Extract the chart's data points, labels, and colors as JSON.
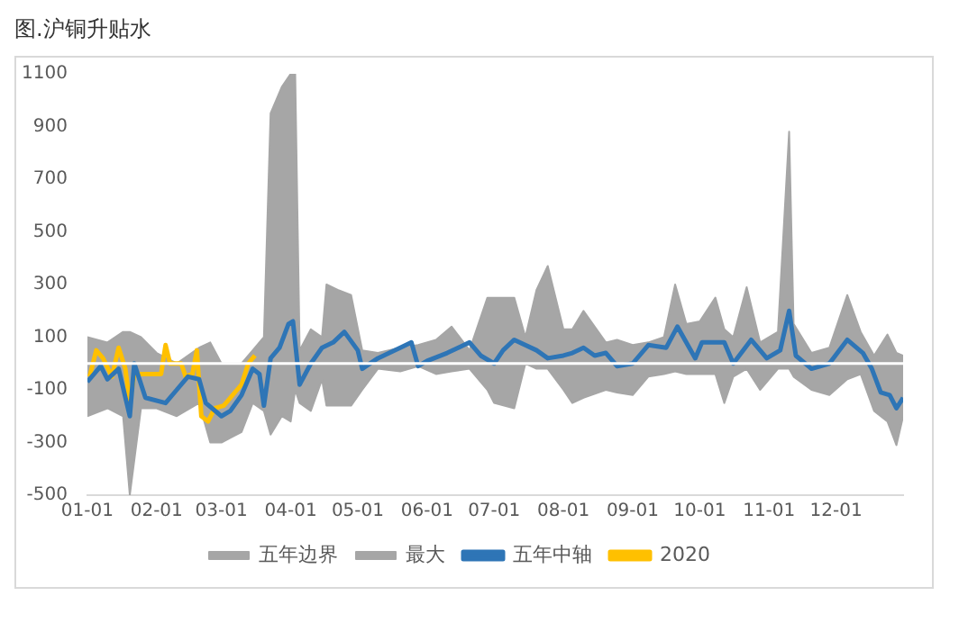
{
  "chart_data": {
    "type": "line",
    "title": "图.沪铜升贴水",
    "xlim": [
      "--01-01",
      "--12-31"
    ],
    "xticks": [
      {
        "value": "--01-01",
        "label": "01-01"
      },
      {
        "value": "--02-01",
        "label": "02-01"
      },
      {
        "value": "--03-01",
        "label": "03-01"
      },
      {
        "value": "--04-01",
        "label": "04-01"
      },
      {
        "value": "--05-01",
        "label": "05-01"
      },
      {
        "value": "--06-01",
        "label": "06-01"
      },
      {
        "value": "--07-01",
        "label": "07-01"
      },
      {
        "value": "--08-01",
        "label": "08-01"
      },
      {
        "value": "--09-01",
        "label": "09-01"
      },
      {
        "value": "--10-01",
        "label": "10-01"
      },
      {
        "value": "--11-01",
        "label": "11-01"
      },
      {
        "value": "--12-01",
        "label": "12-01"
      }
    ],
    "ylim": [
      -500,
      1100
    ],
    "yticks": [
      -500,
      -300,
      -100,
      100,
      300,
      500,
      700,
      900,
      1100
    ],
    "grid": false,
    "legend": "bottom",
    "marker": "none",
    "line_style": "solid",
    "ref_lines": [
      {
        "axis": "y",
        "value": 0,
        "color": "#ffffff"
      }
    ],
    "series": [
      {
        "name": "五年边界",
        "type": "area",
        "color": "#a6a6a6",
        "x": [
          "--01-01",
          "--01-10",
          "--01-17",
          "--01-20",
          "--01-25",
          "--02-01",
          "--02-10",
          "--02-20",
          "--02-25",
          "--03-01",
          "--03-10",
          "--03-15",
          "--03-20",
          "--03-23",
          "--03-28",
          "--04-01",
          "--04-03",
          "--04-05",
          "--04-10",
          "--04-15",
          "--04-17",
          "--04-22",
          "--04-28",
          "--05-03",
          "--05-10",
          "--05-20",
          "--05-28",
          "--06-05",
          "--06-12",
          "--06-20",
          "--06-28",
          "--07-01",
          "--07-10",
          "--07-15",
          "--07-20",
          "--07-25",
          "--08-01",
          "--08-05",
          "--08-10",
          "--08-20",
          "--08-25",
          "--09-01",
          "--09-08",
          "--09-15",
          "--09-20",
          "--09-25",
          "--10-01",
          "--10-08",
          "--10-12",
          "--10-16",
          "--10-22",
          "--10-28",
          "--11-05",
          "--11-10",
          "--11-12",
          "--11-20",
          "--11-28",
          "--12-06",
          "--12-12",
          "--12-18",
          "--12-24",
          "--12-28",
          "--12-31"
        ],
        "values": [
          -200,
          -170,
          -200,
          -500,
          -170,
          -170,
          -200,
          -150,
          -300,
          -300,
          -260,
          -150,
          -180,
          -270,
          -200,
          -220,
          -100,
          -150,
          -180,
          -60,
          -160,
          -160,
          -160,
          -100,
          -20,
          -30,
          -10,
          -40,
          -30,
          -20,
          -100,
          -150,
          -170,
          0,
          -20,
          -20,
          -100,
          -150,
          -130,
          -100,
          -110,
          -120,
          -50,
          -40,
          -30,
          -40,
          -40,
          -40,
          -150,
          -50,
          -20,
          -100,
          -20,
          -20,
          -50,
          -100,
          -120,
          -60,
          -40,
          -180,
          -220,
          -310,
          -200
        ]
      },
      {
        "name": "最大",
        "type": "area",
        "color": "#a6a6a6",
        "x": [
          "--01-01",
          "--01-10",
          "--01-17",
          "--01-20",
          "--01-25",
          "--02-01",
          "--02-10",
          "--02-20",
          "--02-25",
          "--03-01",
          "--03-10",
          "--03-15",
          "--03-20",
          "--03-23",
          "--03-28",
          "--04-01",
          "--04-03",
          "--04-05",
          "--04-10",
          "--04-15",
          "--04-17",
          "--04-22",
          "--04-28",
          "--05-03",
          "--05-10",
          "--05-20",
          "--05-28",
          "--06-05",
          "--06-12",
          "--06-20",
          "--06-28",
          "--07-01",
          "--07-10",
          "--07-15",
          "--07-20",
          "--07-25",
          "--08-01",
          "--08-05",
          "--08-10",
          "--08-20",
          "--08-25",
          "--09-01",
          "--09-08",
          "--09-15",
          "--09-20",
          "--09-25",
          "--10-01",
          "--10-08",
          "--10-12",
          "--10-16",
          "--10-22",
          "--10-28",
          "--11-05",
          "--11-10",
          "--11-12",
          "--11-20",
          "--11-28",
          "--12-06",
          "--12-12",
          "--12-18",
          "--12-24",
          "--12-28",
          "--12-31"
        ],
        "values": [
          100,
          80,
          120,
          120,
          100,
          40,
          0,
          60,
          80,
          0,
          0,
          50,
          100,
          950,
          1050,
          1100,
          1100,
          50,
          130,
          100,
          300,
          280,
          260,
          50,
          40,
          60,
          70,
          90,
          140,
          50,
          250,
          250,
          250,
          100,
          280,
          370,
          130,
          130,
          200,
          80,
          90,
          70,
          80,
          100,
          300,
          150,
          160,
          250,
          130,
          100,
          290,
          80,
          120,
          880,
          150,
          40,
          60,
          260,
          120,
          30,
          110,
          40,
          30
        ]
      },
      {
        "name": "五年中轴",
        "type": "line",
        "color": "#2e75b6",
        "x": [
          "--01-01",
          "--01-07",
          "--01-10",
          "--01-15",
          "--01-20",
          "--01-22",
          "--01-27",
          "--02-05",
          "--02-10",
          "--02-15",
          "--02-20",
          "--02-23",
          "--03-01",
          "--03-05",
          "--03-10",
          "--03-15",
          "--03-18",
          "--03-20",
          "--03-23",
          "--03-27",
          "--03-31",
          "--04-02",
          "--04-05",
          "--04-10",
          "--04-15",
          "--04-20",
          "--04-25",
          "--05-01",
          "--05-03",
          "--05-10",
          "--05-20",
          "--05-25",
          "--05-28",
          "--06-01",
          "--06-10",
          "--06-20",
          "--06-25",
          "--07-01",
          "--07-05",
          "--07-10",
          "--07-20",
          "--07-25",
          "--08-01",
          "--08-05",
          "--08-10",
          "--08-15",
          "--08-20",
          "--08-25",
          "--09-01",
          "--09-08",
          "--09-16",
          "--09-21",
          "--09-29",
          "--10-02",
          "--10-12",
          "--10-16",
          "--10-24",
          "--10-31",
          "--11-06",
          "--11-10",
          "--11-13",
          "--11-20",
          "--11-28",
          "--12-06",
          "--12-13",
          "--12-17",
          "--12-21",
          "--12-25",
          "--12-28",
          "--12-31"
        ],
        "values": [
          -70,
          -10,
          -60,
          -20,
          -200,
          0,
          -130,
          -150,
          -100,
          -50,
          -60,
          -150,
          -200,
          -180,
          -120,
          -20,
          -40,
          -160,
          20,
          60,
          150,
          160,
          -80,
          0,
          60,
          80,
          120,
          50,
          -20,
          20,
          60,
          80,
          -10,
          10,
          40,
          80,
          30,
          0,
          50,
          90,
          50,
          20,
          30,
          40,
          60,
          30,
          40,
          -10,
          0,
          70,
          60,
          140,
          20,
          80,
          80,
          0,
          90,
          20,
          50,
          200,
          30,
          -20,
          0,
          90,
          40,
          -20,
          -110,
          -120,
          -170,
          -130
        ]
      },
      {
        "name": "2020",
        "type": "line",
        "color": "#ffc000",
        "x": [
          "--01-02",
          "--01-05",
          "--01-08",
          "--01-12",
          "--01-15",
          "--01-18",
          "--01-20",
          "--01-22",
          "--01-25",
          "--01-30",
          "--02-03",
          "--02-05",
          "--02-07",
          "--02-12",
          "--02-14",
          "--02-17",
          "--02-19",
          "--02-21",
          "--02-24",
          "--02-27",
          "--03-02",
          "--03-05",
          "--03-08",
          "--03-10",
          "--03-13",
          "--03-16"
        ],
        "values": [
          -50,
          50,
          20,
          -50,
          60,
          -20,
          -150,
          -40,
          -40,
          -40,
          -40,
          70,
          0,
          0,
          -50,
          -40,
          50,
          -200,
          -220,
          -170,
          -160,
          -130,
          -100,
          -80,
          0,
          30
        ]
      }
    ]
  }
}
